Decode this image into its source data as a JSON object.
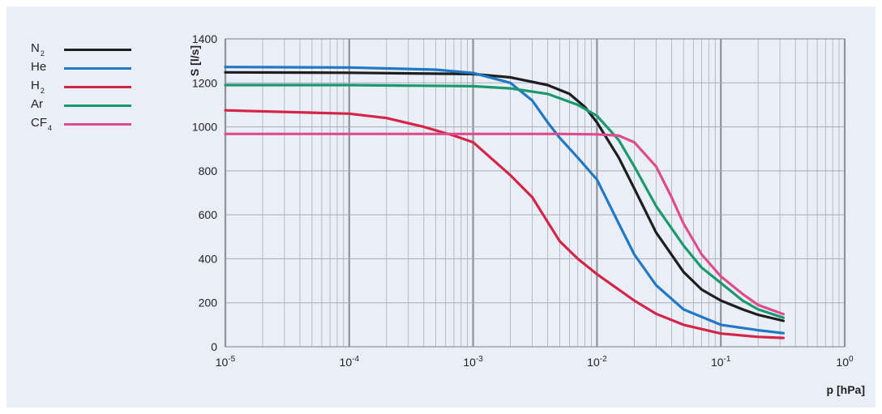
{
  "chart_data": {
    "type": "line",
    "x_scale": "log",
    "xlim": [
      1e-05,
      1
    ],
    "ylim": [
      0,
      1400
    ],
    "grid": true,
    "legend_position": "left",
    "xlabel": "p [hPa]",
    "ylabel": "S [l/s]",
    "x_ticks": [
      {
        "base": "10",
        "exp": "-5",
        "value": 1e-05
      },
      {
        "base": "10",
        "exp": "-4",
        "value": 0.0001
      },
      {
        "base": "10",
        "exp": "-3",
        "value": 0.001
      },
      {
        "base": "10",
        "exp": "-2",
        "value": 0.01
      },
      {
        "base": "10",
        "exp": "-1",
        "value": 0.1
      },
      {
        "base": "10",
        "exp": "0",
        "value": 1
      }
    ],
    "y_ticks": [
      "0",
      "200",
      "400",
      "600",
      "800",
      "1000",
      "1200",
      "1400"
    ],
    "series": [
      {
        "name": "N2",
        "label_base": "N",
        "label_sub": "2",
        "color": "#1e1e1e",
        "x": [
          1e-05,
          0.0001,
          0.001,
          0.002,
          0.004,
          0.006,
          0.008,
          0.01,
          0.015,
          0.02,
          0.03,
          0.05,
          0.07,
          0.1,
          0.15,
          0.2,
          0.32
        ],
        "y": [
          1248,
          1246,
          1240,
          1225,
          1190,
          1150,
          1090,
          1020,
          860,
          720,
          520,
          340,
          260,
          210,
          170,
          145,
          118
        ]
      },
      {
        "name": "He",
        "label_base": "He",
        "label_sub": "",
        "color": "#2178c4",
        "x": [
          1e-05,
          0.0001,
          0.0005,
          0.001,
          0.002,
          0.003,
          0.004,
          0.005,
          0.007,
          0.01,
          0.015,
          0.02,
          0.03,
          0.05,
          0.1,
          0.2,
          0.32
        ],
        "y": [
          1272,
          1270,
          1260,
          1245,
          1200,
          1120,
          1020,
          950,
          860,
          760,
          560,
          420,
          280,
          170,
          100,
          75,
          62
        ]
      },
      {
        "name": "H2",
        "label_base": "H",
        "label_sub": "2",
        "color": "#d42447",
        "x": [
          1e-05,
          0.0001,
          0.0002,
          0.0004,
          0.0007,
          0.001,
          0.002,
          0.003,
          0.005,
          0.007,
          0.01,
          0.02,
          0.03,
          0.05,
          0.1,
          0.2,
          0.32
        ],
        "y": [
          1075,
          1060,
          1040,
          1000,
          960,
          930,
          780,
          680,
          480,
          400,
          330,
          210,
          150,
          100,
          60,
          45,
          40
        ]
      },
      {
        "name": "Ar",
        "label_base": "Ar",
        "label_sub": "",
        "color": "#1a9a6c",
        "x": [
          1e-05,
          0.0001,
          0.001,
          0.002,
          0.004,
          0.007,
          0.01,
          0.015,
          0.02,
          0.03,
          0.05,
          0.07,
          0.1,
          0.15,
          0.2,
          0.32
        ],
        "y": [
          1190,
          1190,
          1185,
          1175,
          1150,
          1100,
          1050,
          940,
          820,
          640,
          460,
          360,
          290,
          210,
          170,
          132
        ]
      },
      {
        "name": "CF4",
        "label_base": "CF",
        "label_sub": "4",
        "color": "#e04b8e",
        "x": [
          1e-05,
          0.0001,
          0.001,
          0.005,
          0.01,
          0.015,
          0.02,
          0.03,
          0.04,
          0.05,
          0.07,
          0.1,
          0.15,
          0.2,
          0.32
        ],
        "y": [
          968,
          968,
          968,
          968,
          966,
          960,
          930,
          820,
          680,
          560,
          420,
          320,
          240,
          190,
          148
        ]
      }
    ]
  }
}
